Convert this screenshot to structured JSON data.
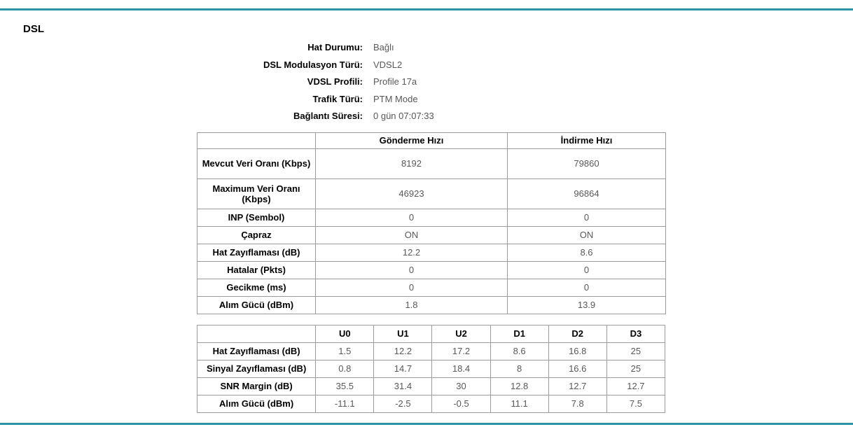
{
  "page": {
    "title": "DSL"
  },
  "colors": {
    "accent_line": "#2b92a3",
    "table_border": "#9b9b9b",
    "label_text": "#000000",
    "value_text": "#58585b"
  },
  "info": {
    "rows": [
      {
        "label": "Hat Durumu:",
        "value": "Bağlı"
      },
      {
        "label": "DSL Modulasyon Türü:",
        "value": "VDSL2"
      },
      {
        "label": "VDSL Profili:",
        "value": "Profile 17a"
      },
      {
        "label": "Trafik Türü:",
        "value": "PTM Mode"
      },
      {
        "label": "Bağlantı Süresi:",
        "value": "0 gün 07:07:33"
      }
    ]
  },
  "rate_table": {
    "columns": [
      "",
      "Gönderme Hızı",
      "İndirme Hızı"
    ],
    "rows": [
      {
        "label": "Mevcut Veri Oranı (Kbps)",
        "values": [
          "8192",
          "79860"
        ]
      },
      {
        "label": "Maximum Veri Oranı (Kbps)",
        "values": [
          "46923",
          "96864"
        ]
      },
      {
        "label": "INP (Sembol)",
        "values": [
          "0",
          "0"
        ]
      },
      {
        "label": "Çapraz",
        "values": [
          "ON",
          "ON"
        ]
      },
      {
        "label": "Hat Zayıflaması (dB)",
        "values": [
          "12.2",
          "8.6"
        ]
      },
      {
        "label": "Hatalar (Pkts)",
        "values": [
          "0",
          "0"
        ]
      },
      {
        "label": "Gecikme (ms)",
        "values": [
          "0",
          "0"
        ]
      },
      {
        "label": "Alım Gücü (dBm)",
        "values": [
          "1.8",
          "13.9"
        ]
      }
    ]
  },
  "band_table": {
    "columns": [
      "",
      "U0",
      "U1",
      "U2",
      "D1",
      "D2",
      "D3"
    ],
    "rows": [
      {
        "label": "Hat Zayıflaması (dB)",
        "values": [
          "1.5",
          "12.2",
          "17.2",
          "8.6",
          "16.8",
          "25"
        ]
      },
      {
        "label": "Sinyal Zayıflaması (dB)",
        "values": [
          "0.8",
          "14.7",
          "18.4",
          "8",
          "16.6",
          "25"
        ]
      },
      {
        "label": "SNR Margin (dB)",
        "values": [
          "35.5",
          "31.4",
          "30",
          "12.8",
          "12.7",
          "12.7"
        ]
      },
      {
        "label": "Alım Gücü (dBm)",
        "values": [
          "-11.1",
          "-2.5",
          "-0.5",
          "11.1",
          "7.8",
          "7.5"
        ]
      }
    ]
  }
}
